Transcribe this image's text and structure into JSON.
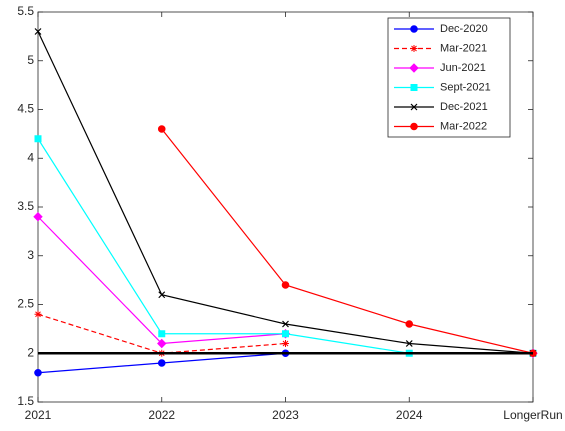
{
  "chart_data": {
    "type": "line",
    "categories": [
      "2021",
      "2022",
      "2023",
      "2024",
      "LongerRun"
    ],
    "series": [
      {
        "name": "Dec-2020",
        "color": "#0000ff",
        "marker": "circle",
        "dash": false,
        "values": [
          1.8,
          1.9,
          2.0,
          null,
          2.0
        ]
      },
      {
        "name": "Mar-2021",
        "color": "#ff0000",
        "marker": "asterisk",
        "dash": true,
        "values": [
          2.4,
          2.0,
          2.1,
          null,
          2.0
        ]
      },
      {
        "name": "Jun-2021",
        "color": "#ff00ff",
        "marker": "diamond",
        "dash": false,
        "values": [
          3.4,
          2.1,
          2.2,
          null,
          2.0
        ]
      },
      {
        "name": "Sept-2021",
        "color": "#00ffff",
        "marker": "square",
        "dash": false,
        "values": [
          4.2,
          2.2,
          2.2,
          2.0,
          2.0
        ]
      },
      {
        "name": "Dec-2021",
        "color": "#000000",
        "marker": "x",
        "dash": false,
        "values": [
          5.3,
          2.6,
          2.3,
          2.1,
          2.0
        ]
      },
      {
        "name": "Mar-2022",
        "color": "#ff0000",
        "marker": "circle",
        "dash": false,
        "values": [
          null,
          4.3,
          2.7,
          2.3,
          2.0
        ]
      }
    ],
    "reference_line": 2,
    "ylim": [
      1.5,
      5.5
    ],
    "yticks": [
      1.5,
      2,
      2.5,
      3,
      3.5,
      4,
      4.5,
      5,
      5.5
    ],
    "grid": false,
    "legend": "upper right"
  }
}
